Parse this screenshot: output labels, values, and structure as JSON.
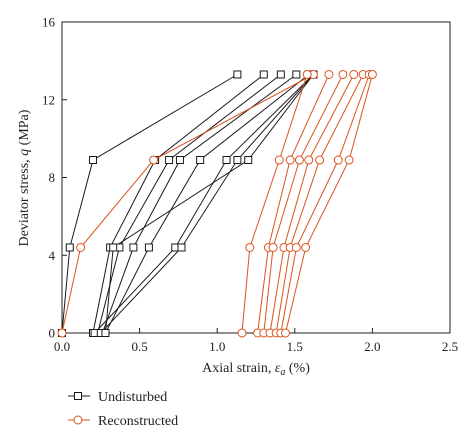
{
  "chart_data": {
    "type": "line",
    "xlabel_prefix": "Axial strain, ",
    "xlabel_symbol": "ε",
    "xlabel_subscript": "a",
    "xlabel_suffix": " (%)",
    "ylabel_prefix": "Deviator stress, ",
    "ylabel_symbol": "q",
    "ylabel_suffix": " (MPa)",
    "xlim": [
      0,
      2.5
    ],
    "ylim": [
      0,
      16
    ],
    "xticks": [
      "0.0",
      "0.5",
      "1.0",
      "1.5",
      "2.0",
      "2.5"
    ],
    "yticks": [
      "0",
      "4",
      "8",
      "12",
      "16"
    ],
    "grid": false,
    "legend_position": "bottom",
    "series": [
      {
        "name": "Undisturbed",
        "color": "#1a1a1a",
        "marker": "square",
        "cycles": [
          [
            [
              0.0,
              0.0
            ],
            [
              0.05,
              4.4
            ],
            [
              0.2,
              8.9
            ],
            [
              1.13,
              13.3
            ]
          ],
          [
            [
              0.2,
              0.0
            ],
            [
              0.31,
              4.4
            ],
            [
              0.6,
              8.9
            ],
            [
              1.3,
              13.3
            ]
          ],
          [
            [
              0.23,
              0.0
            ],
            [
              0.37,
              4.4
            ],
            [
              0.69,
              8.9
            ],
            [
              1.41,
              13.3
            ]
          ],
          [
            [
              0.26,
              0.0
            ],
            [
              0.46,
              4.4
            ],
            [
              0.76,
              8.9
            ],
            [
              1.51,
              13.3
            ]
          ],
          [
            [
              0.28,
              0.0
            ],
            [
              0.56,
              4.4
            ],
            [
              0.89,
              8.9
            ],
            [
              1.59,
              13.3
            ]
          ],
          [
            [
              0.21,
              0.0
            ],
            [
              0.73,
              4.4
            ],
            [
              1.06,
              8.9
            ],
            [
              1.62,
              13.3
            ]
          ],
          [
            [
              0.25,
              0.0
            ],
            [
              0.77,
              4.4
            ],
            [
              1.13,
              8.9
            ],
            [
              1.62,
              13.3
            ]
          ],
          [
            [
              0.28,
              0.0
            ],
            [
              0.33,
              4.4
            ],
            [
              1.2,
              8.9
            ],
            [
              1.62,
              13.3
            ]
          ]
        ]
      },
      {
        "name": "Reconstructed",
        "color": "#d9531e",
        "marker": "circle",
        "cycles": [
          [
            [
              0.0,
              0.0
            ],
            [
              0.12,
              4.4
            ],
            [
              0.59,
              8.9
            ],
            [
              1.62,
              13.3
            ]
          ],
          [
            [
              1.16,
              0.0
            ],
            [
              1.21,
              4.4
            ],
            [
              1.4,
              8.9
            ],
            [
              1.58,
              13.3
            ]
          ],
          [
            [
              1.26,
              0.0
            ],
            [
              1.33,
              4.4
            ],
            [
              1.47,
              8.9
            ],
            [
              1.72,
              13.3
            ]
          ],
          [
            [
              1.3,
              0.0
            ],
            [
              1.36,
              4.4
            ],
            [
              1.53,
              8.9
            ],
            [
              1.81,
              13.3
            ]
          ],
          [
            [
              1.34,
              0.0
            ],
            [
              1.43,
              4.4
            ],
            [
              1.59,
              8.9
            ],
            [
              1.88,
              13.3
            ]
          ],
          [
            [
              1.38,
              0.0
            ],
            [
              1.47,
              4.4
            ],
            [
              1.66,
              8.9
            ],
            [
              1.94,
              13.3
            ]
          ],
          [
            [
              1.41,
              0.0
            ],
            [
              1.51,
              4.4
            ],
            [
              1.78,
              8.9
            ],
            [
              1.98,
              13.3
            ]
          ],
          [
            [
              1.44,
              0.0
            ],
            [
              1.57,
              4.4
            ],
            [
              1.85,
              8.9
            ],
            [
              2.0,
              13.3
            ]
          ]
        ]
      }
    ]
  }
}
